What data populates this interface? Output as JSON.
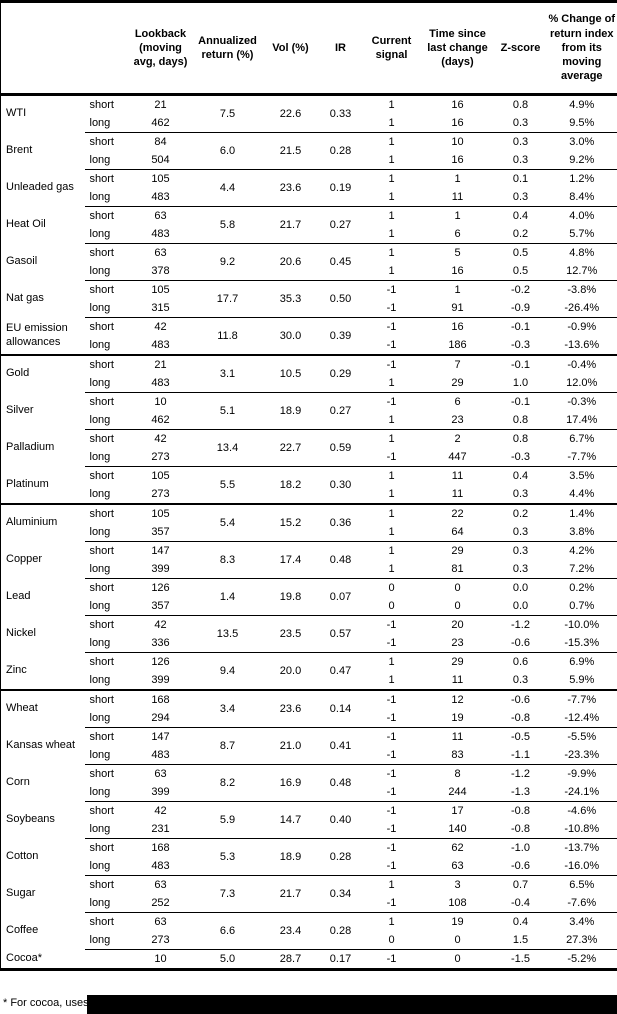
{
  "table": {
    "headers": {
      "name": "",
      "side": "",
      "lookback": "Lookback\n(moving\navg, days)",
      "annualized": "Annualized\nreturn (%)",
      "vol": "Vol (%)",
      "ir": "IR",
      "signal": "Current\nsignal",
      "time": "Time since\nlast change\n(days)",
      "zscore": "Z-score",
      "pct": "% Change of\nreturn index\nfrom its\nmoving\naverage"
    },
    "groups": [
      {
        "name": "WTI",
        "section_break": false,
        "annualized": "7.5",
        "vol": "22.6",
        "ir": "0.33",
        "rows": [
          {
            "side": "short",
            "lookback": "21",
            "signal": "1",
            "time": "16",
            "zscore": "0.8",
            "pct": "4.9%"
          },
          {
            "side": "long",
            "lookback": "462",
            "signal": "1",
            "time": "16",
            "zscore": "0.3",
            "pct": "9.5%"
          }
        ]
      },
      {
        "name": "Brent",
        "section_break": false,
        "annualized": "6.0",
        "vol": "21.5",
        "ir": "0.28",
        "rows": [
          {
            "side": "short",
            "lookback": "84",
            "signal": "1",
            "time": "10",
            "zscore": "0.3",
            "pct": "3.0%"
          },
          {
            "side": "long",
            "lookback": "504",
            "signal": "1",
            "time": "16",
            "zscore": "0.3",
            "pct": "9.2%"
          }
        ]
      },
      {
        "name": "Unleaded gas",
        "section_break": false,
        "annualized": "4.4",
        "vol": "23.6",
        "ir": "0.19",
        "rows": [
          {
            "side": "short",
            "lookback": "105",
            "signal": "1",
            "time": "1",
            "zscore": "0.1",
            "pct": "1.2%"
          },
          {
            "side": "long",
            "lookback": "483",
            "signal": "1",
            "time": "11",
            "zscore": "0.3",
            "pct": "8.4%"
          }
        ]
      },
      {
        "name": "Heat Oil",
        "section_break": false,
        "annualized": "5.8",
        "vol": "21.7",
        "ir": "0.27",
        "rows": [
          {
            "side": "short",
            "lookback": "63",
            "signal": "1",
            "time": "1",
            "zscore": "0.4",
            "pct": "4.0%"
          },
          {
            "side": "long",
            "lookback": "483",
            "signal": "1",
            "time": "6",
            "zscore": "0.2",
            "pct": "5.7%"
          }
        ]
      },
      {
        "name": "Gasoil",
        "section_break": false,
        "annualized": "9.2",
        "vol": "20.6",
        "ir": "0.45",
        "rows": [
          {
            "side": "short",
            "lookback": "63",
            "signal": "1",
            "time": "5",
            "zscore": "0.5",
            "pct": "4.8%"
          },
          {
            "side": "long",
            "lookback": "378",
            "signal": "1",
            "time": "16",
            "zscore": "0.5",
            "pct": "12.7%"
          }
        ]
      },
      {
        "name": "Nat gas",
        "section_break": false,
        "annualized": "17.7",
        "vol": "35.3",
        "ir": "0.50",
        "rows": [
          {
            "side": "short",
            "lookback": "105",
            "signal": "-1",
            "time": "1",
            "zscore": "-0.2",
            "pct": "-3.8%"
          },
          {
            "side": "long",
            "lookback": "315",
            "signal": "-1",
            "time": "91",
            "zscore": "-0.9",
            "pct": "-26.4%"
          }
        ]
      },
      {
        "name": "EU emission allowances",
        "section_break": false,
        "annualized": "11.8",
        "vol": "30.0",
        "ir": "0.39",
        "rows": [
          {
            "side": "short",
            "lookback": "42",
            "signal": "-1",
            "time": "16",
            "zscore": "-0.1",
            "pct": "-0.9%"
          },
          {
            "side": "long",
            "lookback": "483",
            "signal": "-1",
            "time": "186",
            "zscore": "-0.3",
            "pct": "-13.6%"
          }
        ]
      },
      {
        "name": "Gold",
        "section_break": true,
        "annualized": "3.1",
        "vol": "10.5",
        "ir": "0.29",
        "rows": [
          {
            "side": "short",
            "lookback": "21",
            "signal": "-1",
            "time": "7",
            "zscore": "-0.1",
            "pct": "-0.4%"
          },
          {
            "side": "long",
            "lookback": "483",
            "signal": "1",
            "time": "29",
            "zscore": "1.0",
            "pct": "12.0%"
          }
        ]
      },
      {
        "name": "Silver",
        "section_break": false,
        "annualized": "5.1",
        "vol": "18.9",
        "ir": "0.27",
        "rows": [
          {
            "side": "short",
            "lookback": "10",
            "signal": "-1",
            "time": "6",
            "zscore": "-0.1",
            "pct": "-0.3%"
          },
          {
            "side": "long",
            "lookback": "462",
            "signal": "1",
            "time": "23",
            "zscore": "0.8",
            "pct": "17.4%"
          }
        ]
      },
      {
        "name": "Palladium",
        "section_break": false,
        "annualized": "13.4",
        "vol": "22.7",
        "ir": "0.59",
        "rows": [
          {
            "side": "short",
            "lookback": "42",
            "signal": "1",
            "time": "2",
            "zscore": "0.8",
            "pct": "6.7%"
          },
          {
            "side": "long",
            "lookback": "273",
            "signal": "-1",
            "time": "447",
            "zscore": "-0.3",
            "pct": "-7.7%"
          }
        ]
      },
      {
        "name": "Platinum",
        "section_break": false,
        "annualized": "5.5",
        "vol": "18.2",
        "ir": "0.30",
        "rows": [
          {
            "side": "short",
            "lookback": "105",
            "signal": "1",
            "time": "11",
            "zscore": "0.4",
            "pct": "3.5%"
          },
          {
            "side": "long",
            "lookback": "273",
            "signal": "1",
            "time": "11",
            "zscore": "0.3",
            "pct": "4.4%"
          }
        ]
      },
      {
        "name": "Aluminium",
        "section_break": true,
        "annualized": "5.4",
        "vol": "15.2",
        "ir": "0.36",
        "rows": [
          {
            "side": "short",
            "lookback": "105",
            "signal": "1",
            "time": "22",
            "zscore": "0.2",
            "pct": "1.4%"
          },
          {
            "side": "long",
            "lookback": "357",
            "signal": "1",
            "time": "64",
            "zscore": "0.3",
            "pct": "3.8%"
          }
        ]
      },
      {
        "name": "Copper",
        "section_break": false,
        "annualized": "8.3",
        "vol": "17.4",
        "ir": "0.48",
        "rows": [
          {
            "side": "short",
            "lookback": "147",
            "signal": "1",
            "time": "29",
            "zscore": "0.3",
            "pct": "4.2%"
          },
          {
            "side": "long",
            "lookback": "399",
            "signal": "1",
            "time": "81",
            "zscore": "0.3",
            "pct": "7.2%"
          }
        ]
      },
      {
        "name": "Lead",
        "section_break": false,
        "annualized": "1.4",
        "vol": "19.8",
        "ir": "0.07",
        "rows": [
          {
            "side": "short",
            "lookback": "126",
            "signal": "0",
            "time": "0",
            "zscore": "0.0",
            "pct": "0.2%"
          },
          {
            "side": "long",
            "lookback": "357",
            "signal": "0",
            "time": "0",
            "zscore": "0.0",
            "pct": "0.7%"
          }
        ]
      },
      {
        "name": "Nickel",
        "section_break": false,
        "annualized": "13.5",
        "vol": "23.5",
        "ir": "0.57",
        "rows": [
          {
            "side": "short",
            "lookback": "42",
            "signal": "-1",
            "time": "20",
            "zscore": "-1.2",
            "pct": "-10.0%"
          },
          {
            "side": "long",
            "lookback": "336",
            "signal": "-1",
            "time": "23",
            "zscore": "-0.6",
            "pct": "-15.3%"
          }
        ]
      },
      {
        "name": "Zinc",
        "section_break": false,
        "annualized": "9.4",
        "vol": "20.0",
        "ir": "0.47",
        "rows": [
          {
            "side": "short",
            "lookback": "126",
            "signal": "1",
            "time": "29",
            "zscore": "0.6",
            "pct": "6.9%"
          },
          {
            "side": "long",
            "lookback": "399",
            "signal": "1",
            "time": "11",
            "zscore": "0.3",
            "pct": "5.9%"
          }
        ]
      },
      {
        "name": "Wheat",
        "section_break": true,
        "annualized": "3.4",
        "vol": "23.6",
        "ir": "0.14",
        "rows": [
          {
            "side": "short",
            "lookback": "168",
            "signal": "-1",
            "time": "12",
            "zscore": "-0.6",
            "pct": "-7.7%"
          },
          {
            "side": "long",
            "lookback": "294",
            "signal": "-1",
            "time": "19",
            "zscore": "-0.8",
            "pct": "-12.4%"
          }
        ]
      },
      {
        "name": "Kansas wheat",
        "section_break": false,
        "annualized": "8.7",
        "vol": "21.0",
        "ir": "0.41",
        "rows": [
          {
            "side": "short",
            "lookback": "147",
            "signal": "-1",
            "time": "11",
            "zscore": "-0.5",
            "pct": "-5.5%"
          },
          {
            "side": "long",
            "lookback": "483",
            "signal": "-1",
            "time": "83",
            "zscore": "-1.1",
            "pct": "-23.3%"
          }
        ]
      },
      {
        "name": "Corn",
        "section_break": false,
        "annualized": "8.2",
        "vol": "16.9",
        "ir": "0.48",
        "rows": [
          {
            "side": "short",
            "lookback": "63",
            "signal": "-1",
            "time": "8",
            "zscore": "-1.2",
            "pct": "-9.9%"
          },
          {
            "side": "long",
            "lookback": "399",
            "signal": "-1",
            "time": "244",
            "zscore": "-1.3",
            "pct": "-24.1%"
          }
        ]
      },
      {
        "name": "Soybeans",
        "section_break": false,
        "annualized": "5.9",
        "vol": "14.7",
        "ir": "0.40",
        "rows": [
          {
            "side": "short",
            "lookback": "42",
            "signal": "-1",
            "time": "17",
            "zscore": "-0.8",
            "pct": "-4.6%"
          },
          {
            "side": "long",
            "lookback": "231",
            "signal": "-1",
            "time": "140",
            "zscore": "-0.8",
            "pct": "-10.8%"
          }
        ]
      },
      {
        "name": "Cotton",
        "section_break": false,
        "annualized": "5.3",
        "vol": "18.9",
        "ir": "0.28",
        "rows": [
          {
            "side": "short",
            "lookback": "168",
            "signal": "-1",
            "time": "62",
            "zscore": "-1.0",
            "pct": "-13.7%"
          },
          {
            "side": "long",
            "lookback": "483",
            "signal": "-1",
            "time": "63",
            "zscore": "-0.6",
            "pct": "-16.0%"
          }
        ]
      },
      {
        "name": "Sugar",
        "section_break": false,
        "annualized": "7.3",
        "vol": "21.7",
        "ir": "0.34",
        "rows": [
          {
            "side": "short",
            "lookback": "63",
            "signal": "1",
            "time": "3",
            "zscore": "0.7",
            "pct": "6.5%"
          },
          {
            "side": "long",
            "lookback": "252",
            "signal": "-1",
            "time": "108",
            "zscore": "-0.4",
            "pct": "-7.6%"
          }
        ]
      },
      {
        "name": "Coffee",
        "section_break": false,
        "annualized": "6.6",
        "vol": "23.4",
        "ir": "0.28",
        "rows": [
          {
            "side": "short",
            "lookback": "63",
            "signal": "1",
            "time": "19",
            "zscore": "0.4",
            "pct": "3.4%"
          },
          {
            "side": "long",
            "lookback": "273",
            "signal": "0",
            "time": "0",
            "zscore": "1.5",
            "pct": "27.3%"
          }
        ]
      },
      {
        "name": "Cocoa*",
        "section_break": false,
        "single": true,
        "annualized": "5.0",
        "vol": "28.7",
        "ir": "0.17",
        "rows": [
          {
            "side": "",
            "lookback": "10",
            "signal": "-1",
            "time": "0",
            "zscore": "-1.5",
            "pct": "-5.2%"
          }
        ]
      }
    ],
    "footnote": "* For cocoa, uses o"
  }
}
